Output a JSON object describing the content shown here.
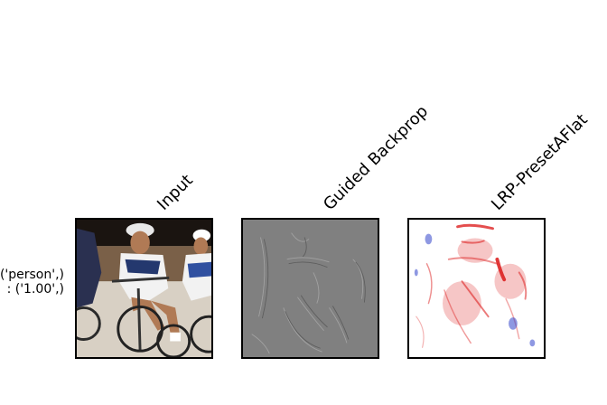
{
  "columns": [
    {
      "title": "Input"
    },
    {
      "title": "Guided Backprop"
    },
    {
      "title": "LRP-PresetAFlat"
    }
  ],
  "row": {
    "label_line1": "('person',)",
    "label_line2": ": ('1.00',)"
  },
  "colors": {
    "gradient_gray": "#808080",
    "lrp_positive": "#cc0000",
    "lrp_negative": "#3344cc"
  }
}
